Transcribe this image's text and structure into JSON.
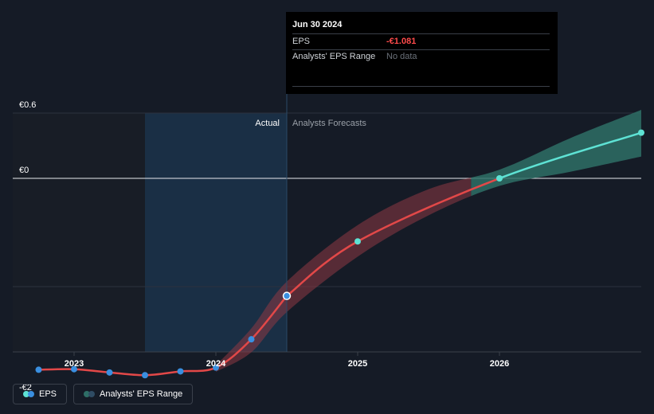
{
  "colors": {
    "actual_line": "#e24848",
    "forecast_line": "#5ee2d4",
    "actual_band": "#8e3844",
    "forecast_band": "#2e6e66",
    "point": "#3a8fe0",
    "history_shade": "#1a2f45"
  },
  "tooltip": {
    "date": "Jun 30 2024",
    "rows": [
      {
        "label": "EPS",
        "value": "-€1.081"
      },
      {
        "label": "Analysts' EPS Range",
        "value": "No data"
      }
    ]
  },
  "regions": {
    "actual": "Actual",
    "forecast": "Analysts Forecasts"
  },
  "legend": [
    {
      "label": "EPS",
      "icon": "eps-legend-icon"
    },
    {
      "label": "Analysts' EPS Range",
      "icon": "range-legend-icon"
    }
  ],
  "chart_data": {
    "type": "line",
    "title": "",
    "xlabel": "",
    "ylabel": "",
    "ylim": [
      -2.0,
      0.6
    ],
    "xlim": [
      2022.6,
      2026.99
    ],
    "y_tick_labels": [
      {
        "value": 0.6,
        "label": "€0.6"
      },
      {
        "value": 0.0,
        "label": "€0"
      },
      {
        "value": -2.0,
        "label": "-€2"
      }
    ],
    "x_ticks": [
      {
        "value": 2023.0,
        "label": "2023"
      },
      {
        "value": 2024.0,
        "label": "2024"
      },
      {
        "value": 2025.0,
        "label": "2025"
      },
      {
        "value": 2026.0,
        "label": "2026"
      }
    ],
    "actual_start": 2023.5,
    "actual_end": 2024.5,
    "series": [
      {
        "name": "EPS (actual)",
        "points": [
          {
            "x": 2022.75,
            "y": -1.76
          },
          {
            "x": 2023.0,
            "y": -1.755
          },
          {
            "x": 2023.25,
            "y": -1.785
          },
          {
            "x": 2023.5,
            "y": -1.81
          },
          {
            "x": 2023.75,
            "y": -1.775
          },
          {
            "x": 2024.0,
            "y": -1.74
          },
          {
            "x": 2024.25,
            "y": -1.48
          },
          {
            "x": 2024.5,
            "y": -1.081
          }
        ]
      },
      {
        "name": "EPS (forecast)",
        "points": [
          {
            "x": 2024.5,
            "y": -1.081
          },
          {
            "x": 2025.0,
            "y": -0.58
          },
          {
            "x": 2026.0,
            "y": 0.0
          },
          {
            "x": 2027.0,
            "y": 0.42
          }
        ]
      }
    ],
    "range_band": [
      {
        "x": 2024.0,
        "low": -1.78,
        "high": -1.72
      },
      {
        "x": 2024.25,
        "low": -1.6,
        "high": -1.38
      },
      {
        "x": 2024.5,
        "low": -1.23,
        "high": -0.95
      },
      {
        "x": 2025.0,
        "low": -0.72,
        "high": -0.43
      },
      {
        "x": 2025.5,
        "low": -0.34,
        "high": -0.1
      },
      {
        "x": 2026.0,
        "low": -0.07,
        "high": 0.08
      },
      {
        "x": 2026.5,
        "low": 0.06,
        "high": 0.37
      },
      {
        "x": 2027.0,
        "low": 0.2,
        "high": 0.63
      }
    ],
    "forecast_band_start": 2025.8
  }
}
